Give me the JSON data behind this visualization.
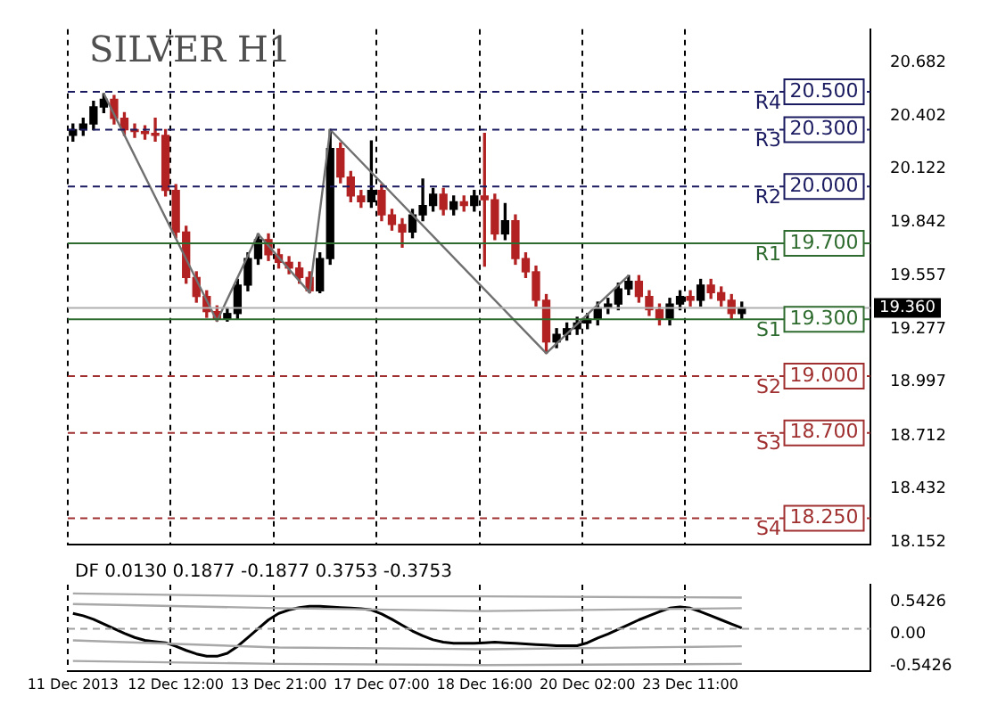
{
  "chart_data": [
    {
      "type": "candlestick",
      "title": "SILVER H1",
      "categories": [
        null,
        null,
        null,
        null,
        null,
        null,
        null,
        null,
        null,
        null,
        null,
        null,
        null,
        null,
        null,
        null,
        null,
        null,
        null,
        null,
        null,
        null,
        null,
        null,
        null,
        null,
        null,
        null,
        null,
        null,
        null,
        null,
        null,
        null,
        null,
        null,
        null,
        null,
        null,
        null,
        null,
        null,
        null,
        null,
        null,
        null,
        null,
        null,
        null,
        null,
        null,
        null,
        null,
        null,
        null,
        null,
        null,
        null,
        null,
        null,
        null,
        null,
        null,
        null,
        null,
        null,
        null,
        null,
        null,
        null,
        null,
        null,
        null,
        null,
        null,
        null,
        null,
        null
      ],
      "ohlc": [
        [
          20.27,
          20.33,
          20.24,
          20.3
        ],
        [
          20.3,
          20.36,
          20.27,
          20.33
        ],
        [
          20.33,
          20.45,
          20.3,
          20.42
        ],
        [
          20.42,
          20.49,
          20.39,
          20.46
        ],
        [
          20.46,
          20.48,
          20.33,
          20.36
        ],
        [
          20.36,
          20.39,
          20.27,
          20.3
        ],
        [
          20.3,
          20.33,
          20.26,
          20.29
        ],
        [
          20.29,
          20.32,
          20.25,
          20.28
        ],
        [
          20.28,
          20.36,
          20.24,
          20.27
        ],
        [
          20.27,
          20.3,
          19.95,
          19.98
        ],
        [
          19.98,
          20.01,
          19.73,
          19.76
        ],
        [
          19.76,
          19.79,
          19.49,
          19.52
        ],
        [
          19.52,
          19.55,
          19.39,
          19.42
        ],
        [
          19.42,
          19.45,
          19.31,
          19.34
        ],
        [
          19.34,
          19.37,
          19.29,
          19.3
        ],
        [
          19.3,
          19.36,
          19.29,
          19.33
        ],
        [
          19.33,
          19.51,
          19.3,
          19.48
        ],
        [
          19.48,
          19.65,
          19.45,
          19.62
        ],
        [
          19.62,
          19.75,
          19.59,
          19.72
        ],
        [
          19.72,
          19.75,
          19.61,
          19.64
        ],
        [
          19.64,
          19.67,
          19.57,
          19.6
        ],
        [
          19.6,
          19.63,
          19.54,
          19.57
        ],
        [
          19.57,
          19.6,
          19.49,
          19.52
        ],
        [
          19.52,
          19.55,
          19.44,
          19.45
        ],
        [
          19.45,
          19.65,
          19.44,
          19.62
        ],
        [
          19.62,
          20.3,
          19.59,
          20.2
        ],
        [
          20.2,
          20.23,
          20.02,
          20.05
        ],
        [
          20.05,
          20.08,
          19.92,
          19.95
        ],
        [
          19.95,
          19.98,
          19.89,
          19.92
        ],
        [
          19.92,
          20.24,
          19.89,
          19.98
        ],
        [
          19.98,
          20.01,
          19.82,
          19.85
        ],
        [
          19.85,
          19.88,
          19.77,
          19.8
        ],
        [
          19.8,
          19.83,
          19.68,
          19.76
        ],
        [
          19.76,
          19.88,
          19.73,
          19.85
        ],
        [
          19.85,
          20.04,
          19.82,
          19.9
        ],
        [
          19.9,
          19.99,
          19.87,
          19.96
        ],
        [
          19.96,
          19.99,
          19.85,
          19.88
        ],
        [
          19.88,
          19.95,
          19.85,
          19.92
        ],
        [
          19.92,
          19.95,
          19.87,
          19.9
        ],
        [
          19.9,
          19.98,
          19.87,
          19.95
        ],
        [
          19.95,
          20.28,
          19.58,
          19.93
        ],
        [
          19.93,
          19.96,
          19.72,
          19.75
        ],
        [
          19.75,
          19.91,
          19.72,
          19.82
        ],
        [
          19.82,
          19.85,
          19.59,
          19.62
        ],
        [
          19.62,
          19.65,
          19.52,
          19.55
        ],
        [
          19.55,
          19.58,
          19.37,
          19.4
        ],
        [
          19.4,
          19.43,
          19.12,
          19.18
        ],
        [
          19.18,
          19.25,
          19.15,
          19.22
        ],
        [
          19.22,
          19.28,
          19.19,
          19.25
        ],
        [
          19.25,
          19.31,
          19.22,
          19.28
        ],
        [
          19.28,
          19.33,
          19.25,
          19.3
        ],
        [
          19.3,
          19.39,
          19.27,
          19.36
        ],
        [
          19.36,
          19.41,
          19.33,
          19.38
        ],
        [
          19.38,
          19.49,
          19.35,
          19.46
        ],
        [
          19.46,
          19.53,
          19.43,
          19.5
        ],
        [
          19.5,
          19.53,
          19.39,
          19.42
        ],
        [
          19.42,
          19.45,
          19.32,
          19.35
        ],
        [
          19.35,
          19.38,
          19.27,
          19.3
        ],
        [
          19.3,
          19.41,
          19.27,
          19.38
        ],
        [
          19.38,
          19.45,
          19.35,
          19.42
        ],
        [
          19.42,
          19.45,
          19.37,
          19.4
        ],
        [
          19.4,
          19.51,
          19.37,
          19.48
        ],
        [
          19.48,
          19.51,
          19.41,
          19.44
        ],
        [
          19.44,
          19.47,
          19.37,
          19.4
        ],
        [
          19.4,
          19.43,
          19.3,
          19.33
        ],
        [
          19.33,
          19.39,
          19.3,
          19.36
        ],
        null,
        null,
        null,
        null,
        null,
        null,
        null,
        null,
        null,
        null,
        null,
        null
      ],
      "series": [
        {
          "type": "line",
          "color": "#707070",
          "values": [
            null,
            null,
            null,
            20.49,
            null,
            null,
            null,
            null,
            null,
            null,
            null,
            null,
            null,
            null,
            19.29,
            null,
            null,
            null,
            19.75,
            null,
            null,
            null,
            null,
            19.44,
            null,
            20.3,
            null,
            null,
            null,
            null,
            null,
            null,
            null,
            null,
            null,
            null,
            null,
            null,
            null,
            null,
            null,
            null,
            null,
            null,
            null,
            null,
            19.12,
            null,
            null,
            null,
            null,
            null,
            null,
            null,
            19.53,
            null,
            null,
            null,
            null,
            null,
            null,
            null,
            null,
            null,
            null,
            null,
            null,
            null,
            null,
            null,
            null,
            null,
            null,
            null,
            null,
            null,
            null,
            null
          ]
        }
      ],
      "ylim": [
        18.11,
        20.83
      ],
      "yticks": [
        18.152,
        18.432,
        18.712,
        18.997,
        19.277,
        19.557,
        19.842,
        20.122,
        20.402,
        20.682
      ],
      "grid": "x",
      "tick_labels": "y",
      "ref_lines": [
        {
          "axis": "y",
          "value": 20.5,
          "label": "R4",
          "color": "#1a1a60",
          "line_style": "dashed"
        },
        {
          "axis": "y",
          "value": 20.3,
          "label": "R3",
          "color": "#1a1a60",
          "line_style": "dashed"
        },
        {
          "axis": "y",
          "value": 20.0,
          "label": "R2",
          "color": "#1a1a60",
          "line_style": "dashed"
        },
        {
          "axis": "y",
          "value": 19.7,
          "label": "R1",
          "color": "#2e6b2e",
          "line_style": "solid"
        },
        {
          "axis": "y",
          "value": 19.36,
          "label": "19.360",
          "color": "#b0b0b0",
          "line_style": "solid"
        },
        {
          "axis": "y",
          "value": 19.3,
          "label": "S1",
          "color": "#2e6b2e",
          "line_style": "solid"
        },
        {
          "axis": "y",
          "value": 19.0,
          "label": "S2",
          "color": "#a03030",
          "line_style": "dashed"
        },
        {
          "axis": "y",
          "value": 18.7,
          "label": "S3",
          "color": "#a03030",
          "line_style": "dashed"
        },
        {
          "axis": "y",
          "value": 18.25,
          "label": "S4",
          "color": "#a03030",
          "line_style": "dashed"
        }
      ],
      "annotations": [
        {
          "text": "20.500",
          "y": 20.5
        },
        {
          "text": "20.300",
          "y": 20.3
        },
        {
          "text": "20.000",
          "y": 20.0
        },
        {
          "text": "19.700",
          "y": 19.7
        },
        {
          "text": "19.300",
          "y": 19.3
        },
        {
          "text": "19.000",
          "y": 19.0
        },
        {
          "text": "18.700",
          "y": 18.7
        },
        {
          "text": "18.250",
          "y": 18.25
        }
      ]
    },
    {
      "type": "line",
      "title": "DF 0.0130 0.1877 -0.1877 0.3753 -0.3753",
      "categories": [
        "11 Dec 2013",
        null,
        null,
        null,
        null,
        null,
        null,
        null,
        null,
        null,
        "12 Dec 12:00",
        null,
        null,
        null,
        null,
        null,
        null,
        null,
        null,
        null,
        "13 Dec 21:00",
        null,
        null,
        null,
        null,
        null,
        null,
        null,
        null,
        null,
        "17 Dec 07:00",
        null,
        null,
        null,
        null,
        null,
        null,
        null,
        null,
        null,
        "18 Dec 16:00",
        null,
        null,
        null,
        null,
        null,
        null,
        null,
        null,
        null,
        "20 Dec 02:00",
        null,
        null,
        null,
        null,
        null,
        null,
        null,
        null,
        null,
        "23 Dec 11:00",
        null,
        null,
        null,
        null,
        null,
        null,
        null,
        null,
        null,
        null,
        null,
        null,
        null,
        null,
        null,
        null,
        null
      ],
      "series": [
        {
          "color": "#a8a8a8",
          "values": [
            0.6,
            null,
            null,
            null,
            null,
            null,
            null,
            null,
            null,
            null,
            null,
            null,
            null,
            null,
            null,
            null,
            null,
            null,
            null,
            null,
            0.55,
            null,
            null,
            null,
            null,
            null,
            null,
            null,
            null,
            null,
            null,
            null,
            null,
            null,
            null,
            null,
            null,
            null,
            null,
            null,
            0.55,
            null,
            null,
            null,
            null,
            null,
            null,
            null,
            null,
            null,
            null,
            null,
            null,
            null,
            null,
            null,
            null,
            null,
            null,
            null,
            null,
            null,
            null,
            null,
            null,
            0.53,
            null,
            null,
            null,
            null,
            null,
            null,
            null,
            null,
            null,
            null,
            null,
            null
          ]
        },
        {
          "color": "#a8a8a8",
          "values": [
            0.42,
            null,
            null,
            null,
            null,
            null,
            null,
            null,
            null,
            null,
            null,
            null,
            null,
            null,
            null,
            null,
            null,
            null,
            null,
            null,
            0.35,
            null,
            null,
            null,
            null,
            null,
            null,
            null,
            null,
            null,
            null,
            null,
            null,
            null,
            null,
            null,
            null,
            null,
            null,
            null,
            0.3,
            null,
            null,
            null,
            null,
            null,
            null,
            null,
            null,
            null,
            null,
            null,
            null,
            null,
            null,
            null,
            null,
            null,
            null,
            null,
            null,
            null,
            null,
            null,
            null,
            0.35,
            null,
            null,
            null,
            null,
            null,
            null,
            null,
            null,
            null,
            null,
            null,
            null
          ]
        },
        {
          "color": "#a8a8a8",
          "values": [
            -0.2,
            null,
            null,
            null,
            null,
            null,
            null,
            null,
            null,
            null,
            null,
            null,
            null,
            null,
            null,
            null,
            null,
            null,
            null,
            null,
            -0.32,
            null,
            null,
            null,
            null,
            null,
            null,
            null,
            null,
            null,
            null,
            null,
            null,
            null,
            null,
            null,
            null,
            null,
            null,
            null,
            -0.35,
            null,
            null,
            null,
            null,
            null,
            null,
            null,
            null,
            null,
            null,
            null,
            null,
            null,
            null,
            null,
            null,
            null,
            null,
            null,
            null,
            null,
            null,
            null,
            null,
            -0.3,
            null,
            null,
            null,
            null,
            null,
            null,
            null,
            null,
            null,
            null,
            null,
            null
          ]
        },
        {
          "color": "#a8a8a8",
          "values": [
            -0.55,
            null,
            null,
            null,
            null,
            null,
            null,
            null,
            null,
            null,
            null,
            null,
            null,
            null,
            null,
            null,
            null,
            null,
            null,
            null,
            -0.6,
            null,
            null,
            null,
            null,
            null,
            null,
            null,
            null,
            null,
            null,
            null,
            null,
            null,
            null,
            null,
            null,
            null,
            null,
            null,
            -0.62,
            null,
            null,
            null,
            null,
            null,
            null,
            null,
            null,
            null,
            null,
            null,
            null,
            null,
            null,
            null,
            null,
            null,
            null,
            null,
            null,
            null,
            null,
            null,
            null,
            -0.6,
            null,
            null,
            null,
            null,
            null,
            null,
            null,
            null,
            null,
            null,
            null,
            null
          ]
        },
        {
          "color": "#000000",
          "values": [
            0.26,
            0.22,
            0.16,
            0.08,
            0.0,
            -0.08,
            -0.15,
            -0.2,
            -0.22,
            -0.24,
            -0.3,
            -0.37,
            -0.43,
            -0.47,
            -0.47,
            -0.42,
            -0.3,
            -0.15,
            0.0,
            0.15,
            0.26,
            0.32,
            0.36,
            0.38,
            0.38,
            0.37,
            0.36,
            0.35,
            0.34,
            0.32,
            0.25,
            0.16,
            0.06,
            -0.04,
            -0.12,
            -0.19,
            -0.23,
            -0.25,
            -0.25,
            -0.25,
            -0.24,
            -0.23,
            -0.24,
            -0.25,
            -0.26,
            -0.27,
            -0.28,
            -0.29,
            -0.29,
            -0.29,
            -0.24,
            -0.16,
            -0.09,
            -0.01,
            0.07,
            0.15,
            0.22,
            0.29,
            0.35,
            0.37,
            0.35,
            0.29,
            0.22,
            0.15,
            0.08,
            0.01,
            null,
            null,
            null,
            null,
            null,
            null,
            null,
            null,
            null,
            null,
            null,
            null
          ]
        }
      ],
      "ylim": [
        -0.72,
        0.75
      ],
      "yticks": [
        -0.5426,
        {
          "value": 0,
          "label": "0.00"
        },
        0.5426
      ],
      "grid": "x",
      "ref_lines": [
        {
          "axis": "y",
          "value": 0,
          "color": "#a0a0a0",
          "line_style": "dashed"
        }
      ]
    }
  ]
}
